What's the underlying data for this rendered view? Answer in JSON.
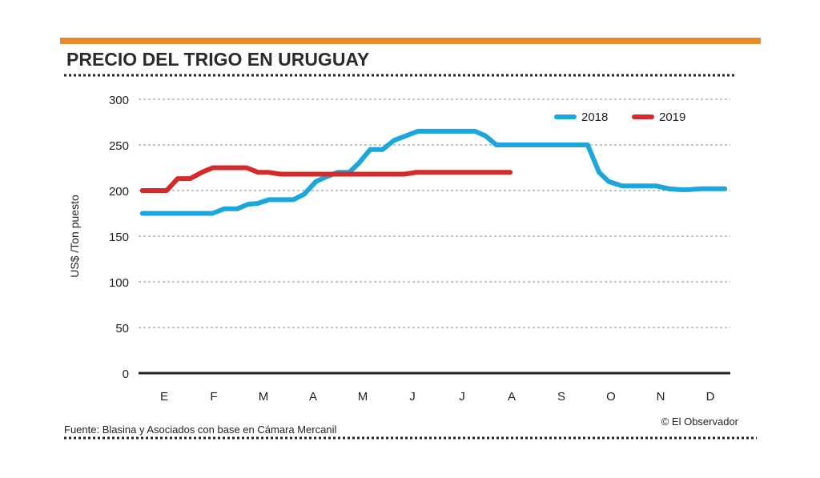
{
  "chart_data": {
    "type": "line",
    "title": "PRECIO DEL TRIGO EN URUGUAY",
    "ylabel": "US$ /Ton puesto",
    "xlabel": "",
    "ylim": [
      0,
      300
    ],
    "yticks": [
      0,
      50,
      100,
      150,
      200,
      250,
      300
    ],
    "categories": [
      "E",
      "F",
      "M",
      "A",
      "M",
      "J",
      "J",
      "A",
      "S",
      "O",
      "N",
      "D"
    ],
    "grid": true,
    "legend": "top-right",
    "series": [
      {
        "name": "2018",
        "color": "#1ba7dc",
        "x": [
          -0.44,
          0.97,
          1.21,
          1.47,
          1.69,
          1.89,
          2.11,
          2.6,
          2.82,
          3.06,
          3.31,
          3.5,
          3.73,
          3.92,
          4.15,
          4.4,
          4.63,
          5.11,
          6.26,
          6.47,
          6.69,
          8.53,
          8.76,
          8.95,
          9.23,
          9.92,
          10.16,
          10.4,
          10.56,
          10.81,
          11.29
        ],
        "y": [
          175,
          175,
          180,
          180,
          185,
          186,
          190,
          190,
          196,
          210,
          216,
          220,
          220,
          230,
          245,
          245,
          255,
          265,
          265,
          260,
          250,
          250,
          220,
          210,
          205,
          205,
          202,
          201,
          201,
          202,
          202
        ]
      },
      {
        "name": "2019",
        "color": "#d42a2a",
        "x": [
          -0.44,
          0.05,
          0.27,
          0.52,
          0.76,
          0.98,
          1.66,
          1.89,
          2.1,
          2.34,
          4.84,
          5.08,
          6.97
        ],
        "y": [
          200,
          200,
          213,
          213,
          220,
          225,
          225,
          220,
          220,
          218,
          218,
          220,
          220
        ]
      }
    ]
  },
  "source": "Fuente: Blasina y Asociados con base en Cámara Mercanil",
  "credit": "© El Observador",
  "accent_color": "#e8892b"
}
